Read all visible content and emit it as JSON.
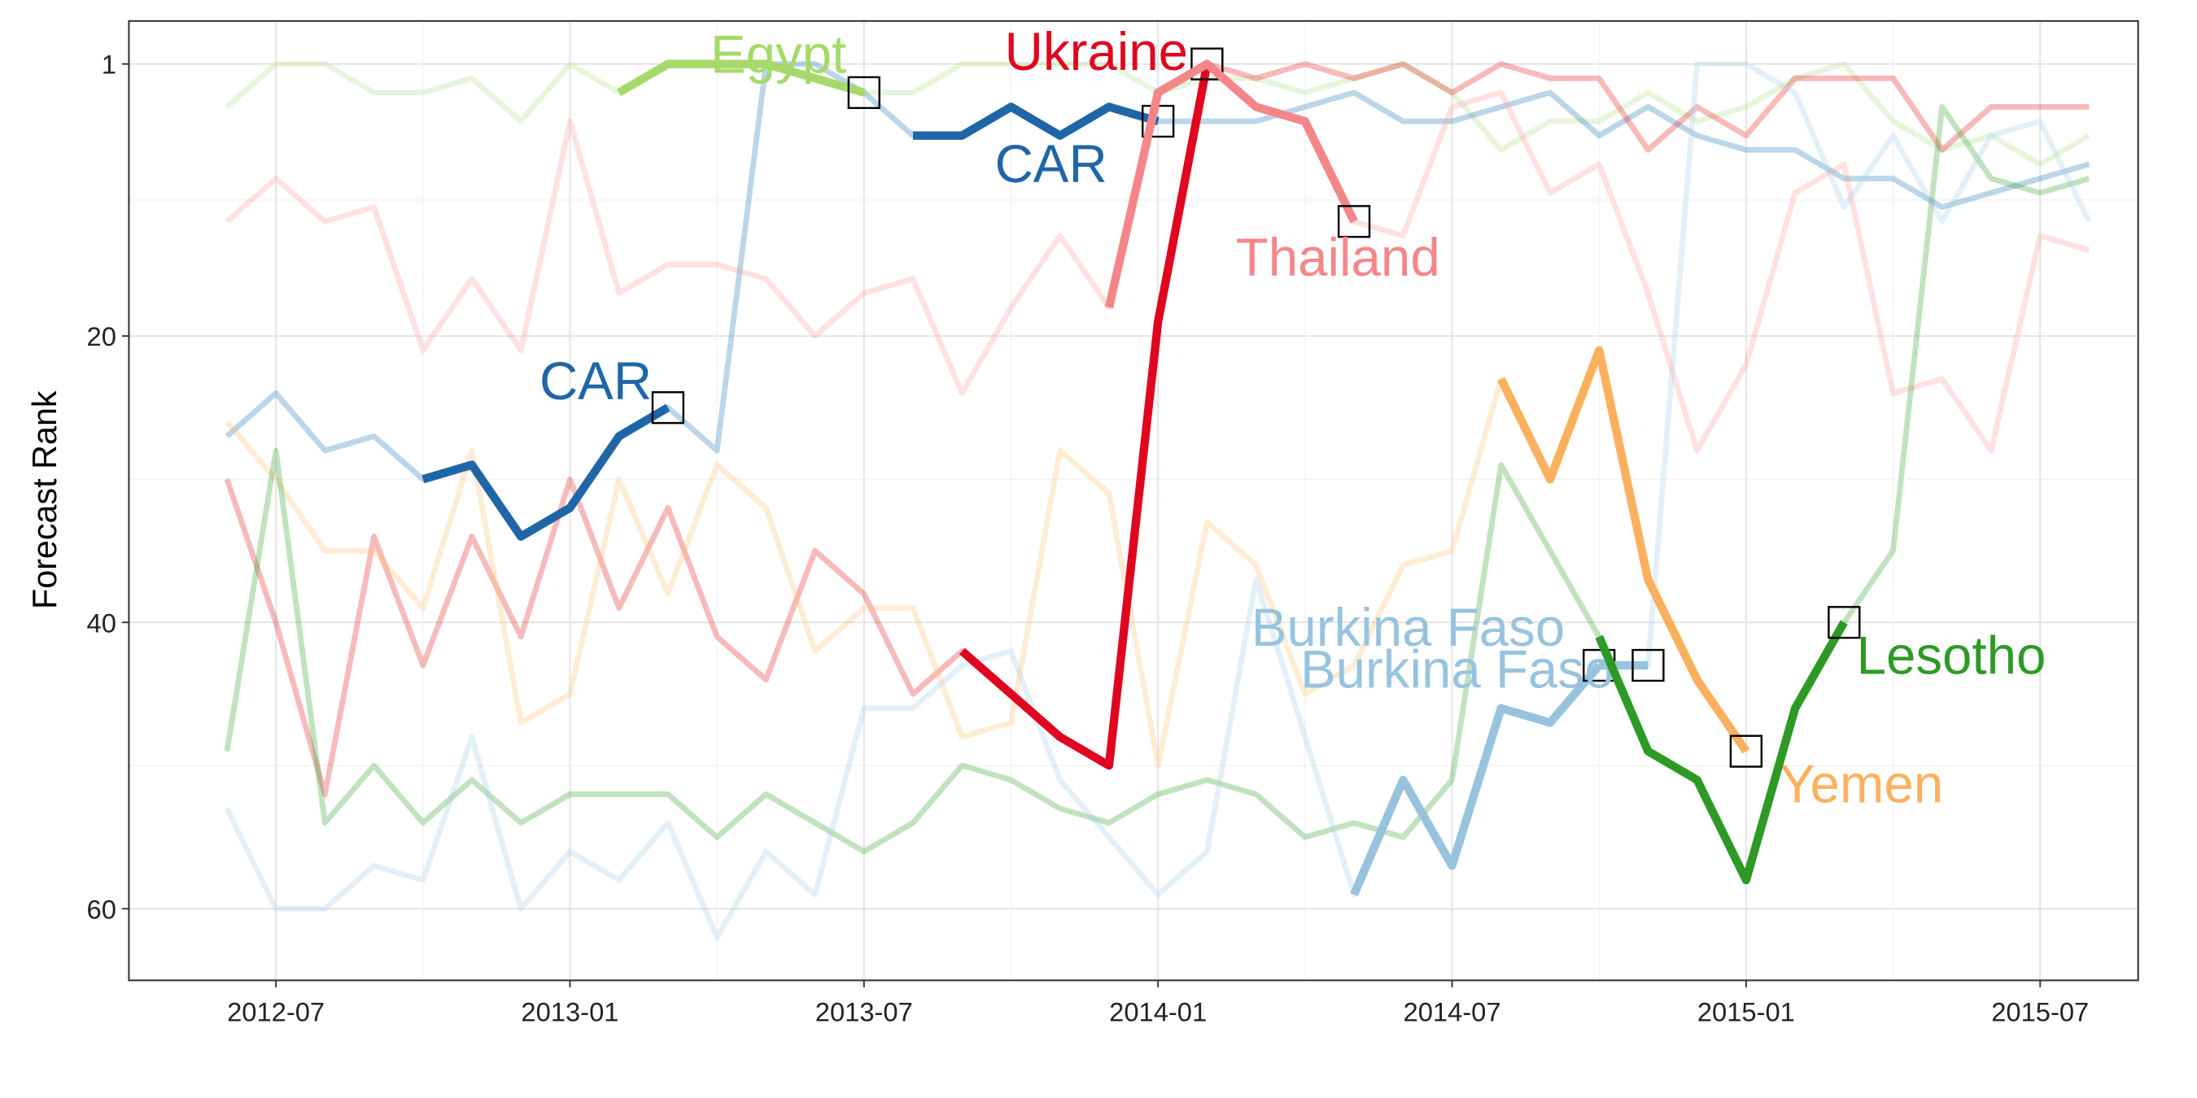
{
  "chart_data": {
    "type": "line",
    "ylabel": "Forecast Rank",
    "x": [
      "2012-06",
      "2012-07",
      "2012-08",
      "2012-09",
      "2012-10",
      "2012-11",
      "2012-12",
      "2013-01",
      "2013-02",
      "2013-03",
      "2013-04",
      "2013-05",
      "2013-06",
      "2013-07",
      "2013-08",
      "2013-09",
      "2013-10",
      "2013-11",
      "2013-12",
      "2014-01",
      "2014-02",
      "2014-03",
      "2014-04",
      "2014-05",
      "2014-06",
      "2014-07",
      "2014-08",
      "2014-09",
      "2014-10",
      "2014-11",
      "2014-12",
      "2015-01",
      "2015-02",
      "2015-03",
      "2015-04",
      "2015-05",
      "2015-06",
      "2015-07",
      "2015-08"
    ],
    "xlim": [
      "2012-04",
      "2015-09"
    ],
    "xticks": [
      "2012-07",
      "2013-01",
      "2013-07",
      "2014-01",
      "2014-07",
      "2015-01",
      "2015-07"
    ],
    "ylim": [
      -2,
      65
    ],
    "y_reversed": true,
    "yticks": [
      1,
      20,
      40,
      60
    ],
    "grid": true,
    "series": [
      {
        "color": "#b2df8a",
        "style": "faint",
        "values": [
          4,
          1,
          1,
          3,
          3,
          2,
          5,
          1,
          3,
          1,
          1,
          1,
          2,
          3,
          3,
          1,
          1,
          1,
          1,
          3,
          2,
          2,
          3,
          2,
          1,
          3,
          7,
          5,
          5,
          3,
          5,
          4,
          2,
          1,
          5,
          7,
          6,
          8,
          6
        ]
      },
      {
        "color": "#1f78b4",
        "style": "faint",
        "values": [
          27,
          24,
          28,
          27,
          30,
          29,
          34,
          32,
          27,
          25,
          28,
          1,
          1,
          3,
          6,
          6,
          4,
          6,
          4,
          5,
          5,
          5,
          4,
          3,
          5,
          5,
          4,
          3,
          6,
          4,
          6,
          7,
          7,
          9,
          9,
          11,
          10,
          9,
          8
        ]
      },
      {
        "color": "#fb9a99",
        "style": "faint",
        "values": [
          12,
          9,
          12,
          11,
          21,
          16,
          21,
          5,
          17,
          15,
          15,
          16,
          20,
          17,
          16,
          24,
          18,
          13,
          18,
          3,
          1,
          4,
          5,
          12,
          13,
          4,
          3,
          10,
          8,
          17,
          28,
          22,
          10,
          8,
          24,
          23,
          28,
          13,
          14
        ]
      },
      {
        "color": "#e31a1c",
        "style": "faint",
        "values": [
          30,
          40,
          52,
          34,
          43,
          34,
          41,
          30,
          39,
          32,
          41,
          44,
          35,
          38,
          45,
          42,
          45,
          48,
          50,
          19,
          1,
          2,
          1,
          2,
          1,
          3,
          1,
          2,
          2,
          7,
          4,
          6,
          2,
          2,
          2,
          7,
          4,
          4,
          4
        ]
      },
      {
        "color": "#fdbf6f",
        "style": "faint",
        "values": [
          26,
          30,
          35,
          35,
          39,
          28,
          47,
          45,
          30,
          38,
          29,
          32,
          42,
          39,
          39,
          48,
          47,
          28,
          31,
          50,
          33,
          36,
          45,
          43,
          36,
          35,
          23,
          30,
          21,
          37,
          44,
          49,
          null,
          null,
          null,
          null,
          null,
          null,
          null
        ]
      },
      {
        "color": "#33a02c",
        "style": "faint",
        "values": [
          49,
          28,
          54,
          50,
          54,
          51,
          54,
          52,
          52,
          52,
          55,
          52,
          54,
          56,
          54,
          50,
          51,
          53,
          54,
          52,
          51,
          52,
          55,
          54,
          55,
          51,
          29,
          35,
          41,
          49,
          51,
          58,
          46,
          40,
          35,
          4,
          9,
          10,
          9
        ]
      },
      {
        "color": "#a6cee3",
        "style": "faint",
        "values": [
          53,
          60,
          60,
          57,
          58,
          48,
          60,
          56,
          58,
          54,
          62,
          56,
          59,
          46,
          46,
          43,
          42,
          51,
          55,
          59,
          56,
          37,
          48,
          59,
          51,
          57,
          46,
          47,
          43,
          43,
          1,
          1,
          3,
          11,
          6,
          12,
          6,
          5,
          12
        ]
      },
      {
        "name": "Egypt",
        "color": "#a6d96a",
        "style": "highlight",
        "end_marker": true,
        "values": [
          null,
          null,
          null,
          null,
          null,
          null,
          null,
          null,
          3,
          1,
          1,
          1,
          2,
          3,
          null,
          null,
          null,
          null,
          null,
          null,
          null,
          null,
          null,
          null,
          null,
          null,
          null,
          null,
          null,
          null,
          null,
          null,
          null,
          null,
          null,
          null,
          null,
          null,
          null
        ]
      },
      {
        "name": "CAR",
        "color": "#1f66a8",
        "style": "highlight",
        "end_marker": true,
        "values": [
          null,
          null,
          null,
          null,
          30,
          29,
          34,
          32,
          27,
          25,
          null,
          null,
          null,
          null,
          null,
          null,
          null,
          null,
          null,
          null,
          null,
          null,
          null,
          null,
          null,
          null,
          null,
          null,
          null,
          null,
          null,
          null,
          null,
          null,
          null,
          null,
          null,
          null,
          null
        ]
      },
      {
        "name": "CAR",
        "color": "#1f66a8",
        "style": "highlight",
        "end_marker": true,
        "values": [
          null,
          null,
          null,
          null,
          null,
          null,
          null,
          null,
          null,
          null,
          null,
          null,
          null,
          null,
          6,
          6,
          4,
          6,
          4,
          5,
          null,
          null,
          null,
          null,
          null,
          null,
          null,
          null,
          null,
          null,
          null,
          null,
          null,
          null,
          null,
          null,
          null,
          null,
          null
        ]
      },
      {
        "name": "Ukraine",
        "color": "#e0061f",
        "style": "highlight",
        "end_marker": true,
        "values": [
          null,
          null,
          null,
          null,
          null,
          null,
          null,
          null,
          null,
          null,
          null,
          null,
          null,
          null,
          null,
          42,
          45,
          48,
          50,
          19,
          1,
          null,
          null,
          null,
          null,
          null,
          null,
          null,
          null,
          null,
          null,
          null,
          null,
          null,
          null,
          null,
          null,
          null,
          null
        ]
      },
      {
        "name": "Thailand",
        "color": "#f4868a",
        "style": "highlight",
        "end_marker": true,
        "values": [
          null,
          null,
          null,
          null,
          null,
          null,
          null,
          null,
          null,
          null,
          null,
          null,
          null,
          null,
          null,
          null,
          null,
          null,
          18,
          3,
          1,
          4,
          5,
          12,
          null,
          null,
          null,
          null,
          null,
          null,
          null,
          null,
          null,
          null,
          null,
          null,
          null,
          null,
          null
        ]
      },
      {
        "name": "Burkina Faso",
        "color": "#97c3df",
        "style": "highlight",
        "end_marker": true,
        "values": [
          null,
          null,
          null,
          null,
          null,
          null,
          null,
          null,
          null,
          null,
          null,
          null,
          null,
          null,
          null,
          null,
          null,
          null,
          null,
          null,
          null,
          null,
          null,
          59,
          51,
          57,
          46,
          47,
          43,
          null,
          null,
          null,
          null,
          null,
          null,
          null,
          null,
          null,
          null
        ]
      },
      {
        "name": "Burkina Faso",
        "color": "#97c3df",
        "style": "highlight",
        "end_marker": true,
        "values": [
          null,
          null,
          null,
          null,
          null,
          null,
          null,
          null,
          null,
          null,
          null,
          null,
          null,
          null,
          null,
          null,
          null,
          null,
          null,
          null,
          null,
          null,
          null,
          null,
          null,
          null,
          null,
          null,
          43,
          43,
          null,
          null,
          null,
          null,
          null,
          null,
          null,
          null,
          null
        ]
      },
      {
        "name": "Yemen",
        "color": "#fbb05e",
        "style": "highlight",
        "end_marker": true,
        "values": [
          null,
          null,
          null,
          null,
          null,
          null,
          null,
          null,
          null,
          null,
          null,
          null,
          null,
          null,
          null,
          null,
          null,
          null,
          null,
          null,
          null,
          null,
          null,
          null,
          null,
          null,
          23,
          30,
          21,
          37,
          44,
          49,
          null,
          null,
          null,
          null,
          null,
          null,
          null
        ]
      },
      {
        "name": "Lesotho",
        "color": "#2e9a26",
        "style": "highlight",
        "end_marker": true,
        "values": [
          null,
          null,
          null,
          null,
          null,
          null,
          null,
          null,
          null,
          null,
          null,
          null,
          null,
          null,
          null,
          null,
          null,
          null,
          null,
          null,
          null,
          null,
          null,
          null,
          null,
          null,
          null,
          null,
          41,
          49,
          51,
          58,
          46,
          40,
          null,
          null,
          null,
          null,
          null
        ]
      }
    ]
  }
}
